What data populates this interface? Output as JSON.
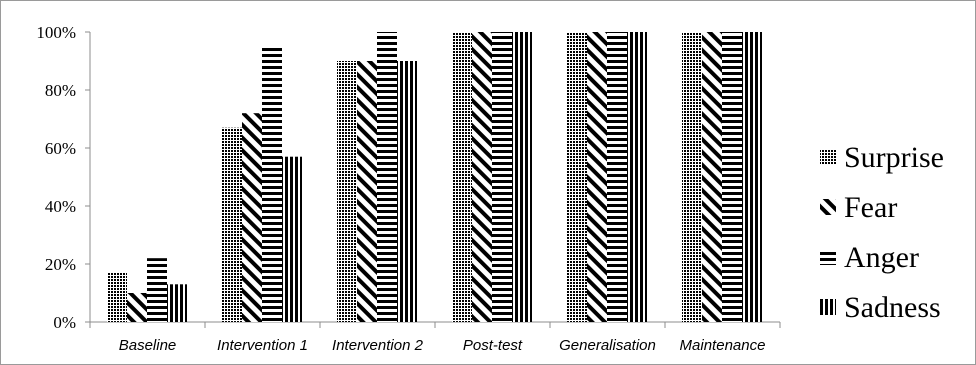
{
  "chart_data": {
    "type": "bar",
    "categories": [
      "Baseline",
      "Intervention 1",
      "Intervention 2",
      "Post-test",
      "Generalisation",
      "Maintenance"
    ],
    "series": [
      {
        "name": "Surprise",
        "values": [
          0.17,
          0.67,
          0.9,
          1.0,
          1.0,
          1.0
        ],
        "pattern": "dots"
      },
      {
        "name": "Fear",
        "values": [
          0.1,
          0.72,
          0.9,
          1.0,
          1.0,
          1.0
        ],
        "pattern": "diagonal"
      },
      {
        "name": "Anger",
        "values": [
          0.22,
          0.95,
          1.0,
          1.0,
          1.0,
          1.0
        ],
        "pattern": "horizontal"
      },
      {
        "name": "Sadness",
        "values": [
          0.13,
          0.57,
          0.9,
          1.0,
          1.0,
          1.0
        ],
        "pattern": "vertical"
      }
    ],
    "yticks": [
      "0%",
      "20%",
      "40%",
      "60%",
      "80%",
      "100%"
    ],
    "ylim": [
      0,
      1
    ],
    "grid": false,
    "legend_position": "right",
    "colors": {
      "bar": "#000000",
      "axis": "#8c8c8c",
      "border": "#9a9a9a"
    }
  }
}
